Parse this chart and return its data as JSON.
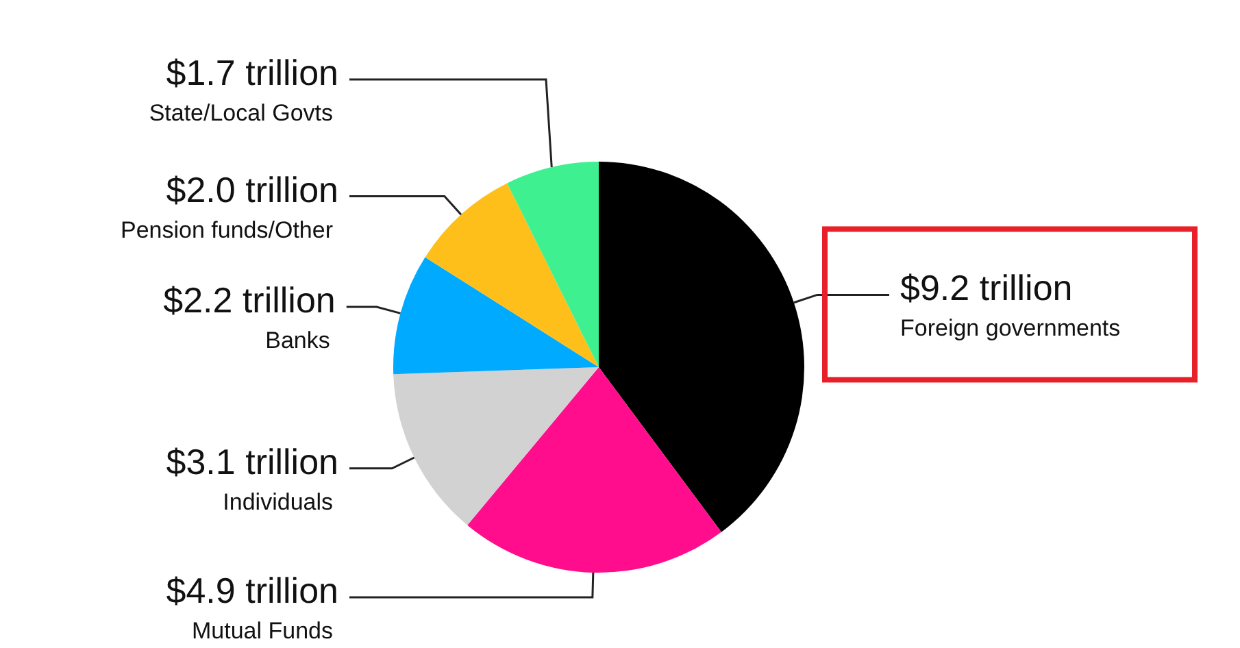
{
  "chart_data": {
    "type": "pie",
    "categories": [
      "Foreign governments",
      "Mutual Funds",
      "Individuals",
      "Banks",
      "Pension funds/Other",
      "State/Local Govts"
    ],
    "values": [
      9.2,
      4.9,
      3.1,
      2.2,
      2.0,
      1.7
    ],
    "colors": [
      "#000000",
      "#ff0d8c",
      "#d2d2d2",
      "#00aaff",
      "#ffbf1a",
      "#3ef08f"
    ],
    "value_labels": [
      "$9.2 trillion",
      "$4.9 trillion",
      "$3.1 trillion",
      "$2.2 trillion",
      "$2.0 trillion",
      "$1.7 trillion"
    ],
    "legend": false
  }
}
